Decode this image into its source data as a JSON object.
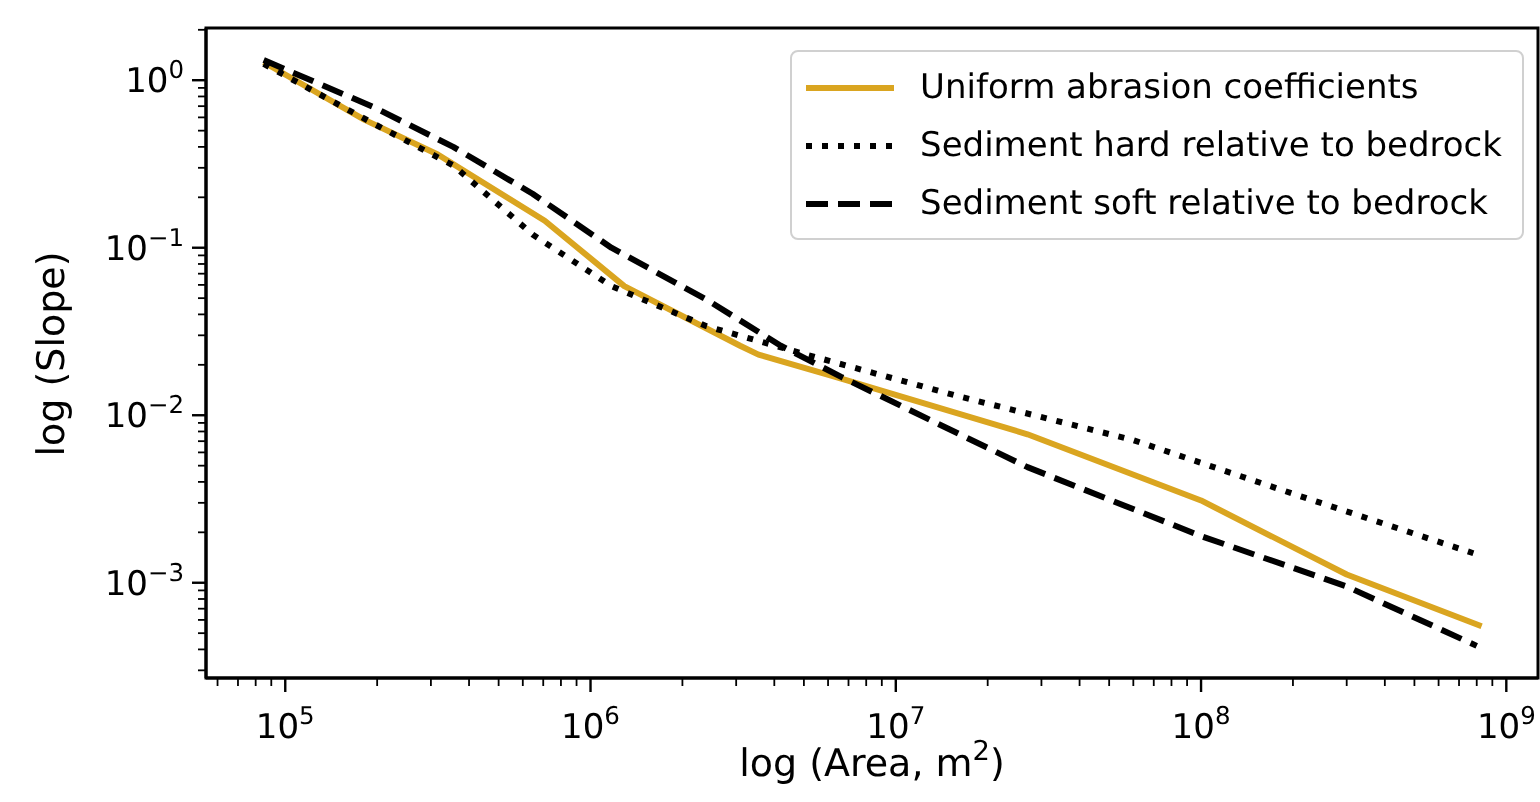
{
  "chart_data": {
    "type": "line",
    "xlabel": "log (Area, m$^{2}$)",
    "ylabel": "log (Slope)",
    "log": "xy",
    "legend": "top right",
    "xlim": [
      55000,
      1270000000
    ],
    "ylim": [
      0.00027,
      2.05
    ],
    "xticks": [
      {
        "value": 60000,
        "label": null
      },
      {
        "value": 70000,
        "label": null
      },
      {
        "value": 80000,
        "label": null
      },
      {
        "value": 90000,
        "label": null
      },
      {
        "value": 100000,
        "label": "10$^{5}$"
      },
      {
        "value": 200000,
        "label": null
      },
      {
        "value": 300000,
        "label": null
      },
      {
        "value": 400000,
        "label": null
      },
      {
        "value": 500000,
        "label": null
      },
      {
        "value": 600000,
        "label": null
      },
      {
        "value": 700000,
        "label": null
      },
      {
        "value": 800000,
        "label": null
      },
      {
        "value": 900000,
        "label": null
      },
      {
        "value": 1000000,
        "label": "10$^{6}$"
      },
      {
        "value": 2000000,
        "label": null
      },
      {
        "value": 3000000,
        "label": null
      },
      {
        "value": 4000000,
        "label": null
      },
      {
        "value": 5000000,
        "label": null
      },
      {
        "value": 6000000,
        "label": null
      },
      {
        "value": 7000000,
        "label": null
      },
      {
        "value": 8000000,
        "label": null
      },
      {
        "value": 9000000,
        "label": null
      },
      {
        "value": 10000000,
        "label": "10$^{7}$"
      },
      {
        "value": 20000000,
        "label": null
      },
      {
        "value": 30000000,
        "label": null
      },
      {
        "value": 40000000,
        "label": null
      },
      {
        "value": 50000000,
        "label": null
      },
      {
        "value": 60000000,
        "label": null
      },
      {
        "value": 70000000,
        "label": null
      },
      {
        "value": 80000000,
        "label": null
      },
      {
        "value": 90000000,
        "label": null
      },
      {
        "value": 100000000,
        "label": "10$^{8}$"
      },
      {
        "value": 200000000,
        "label": null
      },
      {
        "value": 300000000,
        "label": null
      },
      {
        "value": 400000000,
        "label": null
      },
      {
        "value": 500000000,
        "label": null
      },
      {
        "value": 600000000,
        "label": null
      },
      {
        "value": 700000000,
        "label": null
      },
      {
        "value": 800000000,
        "label": null
      },
      {
        "value": 900000000,
        "label": null
      },
      {
        "value": 1000000000,
        "label": "10$^{9}$"
      }
    ],
    "yticks": [
      {
        "value": 0.0003,
        "label": null
      },
      {
        "value": 0.0004,
        "label": null
      },
      {
        "value": 0.0005,
        "label": null
      },
      {
        "value": 0.0006,
        "label": null
      },
      {
        "value": 0.0007,
        "label": null
      },
      {
        "value": 0.0008,
        "label": null
      },
      {
        "value": 0.0009,
        "label": null
      },
      {
        "value": 0.001,
        "label": "10$^{−3}$"
      },
      {
        "value": 0.002,
        "label": null
      },
      {
        "value": 0.003,
        "label": null
      },
      {
        "value": 0.004,
        "label": null
      },
      {
        "value": 0.005,
        "label": null
      },
      {
        "value": 0.006,
        "label": null
      },
      {
        "value": 0.007,
        "label": null
      },
      {
        "value": 0.008,
        "label": null
      },
      {
        "value": 0.009,
        "label": null
      },
      {
        "value": 0.01,
        "label": "10$^{−2}$"
      },
      {
        "value": 0.02,
        "label": null
      },
      {
        "value": 0.03,
        "label": null
      },
      {
        "value": 0.04,
        "label": null
      },
      {
        "value": 0.05,
        "label": null
      },
      {
        "value": 0.06,
        "label": null
      },
      {
        "value": 0.07,
        "label": null
      },
      {
        "value": 0.08,
        "label": null
      },
      {
        "value": 0.09,
        "label": null
      },
      {
        "value": 0.1,
        "label": "10$^{−1}$"
      },
      {
        "value": 0.2,
        "label": null
      },
      {
        "value": 0.3,
        "label": null
      },
      {
        "value": 0.4,
        "label": null
      },
      {
        "value": 0.5,
        "label": null
      },
      {
        "value": 0.6,
        "label": null
      },
      {
        "value": 0.7,
        "label": null
      },
      {
        "value": 0.8,
        "label": null
      },
      {
        "value": 0.9,
        "label": null
      },
      {
        "value": 1,
        "label": "10$^{0}$"
      },
      {
        "value": 2,
        "label": null
      }
    ],
    "series": [
      {
        "name": "Uniform abrasion coefficients",
        "color": "#daa520",
        "line_style": "solid",
        "x": [
          85000,
          182000,
          316000,
          708000,
          1290000,
          3090000,
          3550000,
          6300000,
          27000000,
          100000000,
          300000000,
          830000000
        ],
        "values": [
          1.28,
          0.58,
          0.36,
          0.145,
          0.059,
          0.026,
          0.023,
          0.017,
          0.0077,
          0.0031,
          0.00112,
          0.00055
        ]
      },
      {
        "name": "Sediment hard relative to bedrock",
        "color": "#000000",
        "line_style": "dotted",
        "x": [
          85000,
          195000,
          355000,
          646000,
          1170000,
          2400000,
          5100000,
          16000000,
          60000000,
          200000000,
          780000000
        ],
        "values": [
          1.25,
          0.55,
          0.31,
          0.12,
          0.059,
          0.034,
          0.023,
          0.013,
          0.0071,
          0.0034,
          0.0015
        ]
      },
      {
        "name": "Sediment soft relative to bedrock",
        "color": "#000000",
        "line_style": "dashed",
        "x": [
          85000,
          195000,
          355000,
          646000,
          1170000,
          2400000,
          4200000,
          6600000,
          27000000,
          100000000,
          300000000,
          800000000
        ],
        "values": [
          1.32,
          0.69,
          0.4,
          0.21,
          0.1,
          0.049,
          0.026,
          0.017,
          0.0049,
          0.0019,
          0.00095,
          0.00042
        ]
      }
    ]
  }
}
